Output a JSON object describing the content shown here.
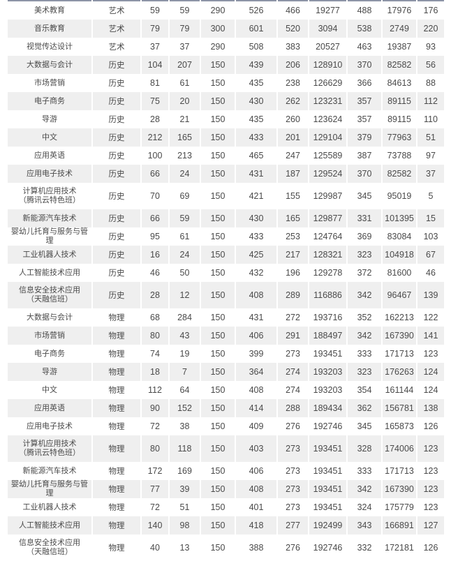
{
  "page": {
    "background": "#ffffff",
    "colors": {
      "row_alt_bg": "#efefef",
      "top_border": "#8d94a6",
      "text": "#4a4a4a",
      "cell_gap": "#ffffff"
    }
  },
  "table": {
    "rows": [
      {
        "major": "美术教育",
        "major2": "",
        "category": "艺术",
        "values": [
          59,
          59,
          290,
          526,
          466,
          19277,
          488,
          17976,
          176
        ]
      },
      {
        "major": "音乐教育",
        "major2": "",
        "category": "艺术",
        "values": [
          79,
          79,
          300,
          601,
          520,
          3094,
          538,
          2749,
          220
        ]
      },
      {
        "major": "视觉传达设计",
        "major2": "",
        "category": "艺术",
        "values": [
          37,
          37,
          290,
          508,
          383,
          20527,
          463,
          19387,
          93
        ]
      },
      {
        "major": "大数据与会计",
        "major2": "",
        "category": "历史",
        "values": [
          104,
          207,
          150,
          439,
          206,
          128910,
          370,
          82582,
          56
        ]
      },
      {
        "major": "市场营销",
        "major2": "",
        "category": "历史",
        "values": [
          81,
          61,
          150,
          435,
          238,
          126629,
          366,
          84613,
          88
        ]
      },
      {
        "major": "电子商务",
        "major2": "",
        "category": "历史",
        "values": [
          75,
          20,
          150,
          430,
          262,
          123231,
          357,
          89115,
          112
        ]
      },
      {
        "major": "导游",
        "major2": "",
        "category": "历史",
        "values": [
          28,
          21,
          150,
          435,
          260,
          123624,
          357,
          89115,
          110
        ]
      },
      {
        "major": "中文",
        "major2": "",
        "category": "历史",
        "values": [
          212,
          165,
          150,
          433,
          201,
          129104,
          379,
          77963,
          51
        ]
      },
      {
        "major": "应用英语",
        "major2": "",
        "category": "历史",
        "values": [
          100,
          213,
          150,
          465,
          247,
          125589,
          387,
          73788,
          97
        ]
      },
      {
        "major": "应用电子技术",
        "major2": "",
        "category": "历史",
        "values": [
          66,
          24,
          150,
          431,
          187,
          129524,
          370,
          82582,
          37
        ]
      },
      {
        "major": "计算机应用技术",
        "major2": "（腾讯云特色班）",
        "category": "历史",
        "values": [
          70,
          69,
          150,
          421,
          155,
          129987,
          345,
          95019,
          5
        ]
      },
      {
        "major": "新能源汽车技术",
        "major2": "",
        "category": "历史",
        "values": [
          66,
          59,
          150,
          430,
          165,
          129877,
          331,
          101395,
          15
        ]
      },
      {
        "major": "婴幼儿托育与服务与管理",
        "major2": "",
        "category": "历史",
        "values": [
          95,
          61,
          150,
          433,
          253,
          124764,
          369,
          83084,
          103
        ]
      },
      {
        "major": "工业机器人技术",
        "major2": "",
        "category": "历史",
        "values": [
          16,
          24,
          150,
          425,
          217,
          128321,
          323,
          104918,
          67
        ]
      },
      {
        "major": "人工智能技术应用",
        "major2": "",
        "category": "历史",
        "values": [
          46,
          50,
          150,
          432,
          196,
          129278,
          372,
          81600,
          46
        ]
      },
      {
        "major": "信息安全技术应用",
        "major2": "（天融信班）",
        "category": "历史",
        "values": [
          28,
          12,
          150,
          408,
          289,
          116886,
          342,
          96467,
          139
        ]
      },
      {
        "major": "大数据与会计",
        "major2": "",
        "category": "物理",
        "values": [
          68,
          284,
          150,
          431,
          272,
          193716,
          352,
          162213,
          122
        ]
      },
      {
        "major": "市场营销",
        "major2": "",
        "category": "物理",
        "values": [
          80,
          43,
          150,
          406,
          291,
          188497,
          342,
          167390,
          141
        ]
      },
      {
        "major": "电子商务",
        "major2": "",
        "category": "物理",
        "values": [
          74,
          19,
          150,
          399,
          273,
          193451,
          333,
          171713,
          123
        ]
      },
      {
        "major": "导游",
        "major2": "",
        "category": "物理",
        "values": [
          18,
          7,
          150,
          364,
          274,
          193203,
          323,
          176263,
          124
        ]
      },
      {
        "major": "中文",
        "major2": "",
        "category": "物理",
        "values": [
          112,
          64,
          150,
          408,
          274,
          193203,
          354,
          161144,
          124
        ]
      },
      {
        "major": "应用英语",
        "major2": "",
        "category": "物理",
        "values": [
          90,
          152,
          150,
          414,
          288,
          189434,
          362,
          156781,
          138
        ]
      },
      {
        "major": "应用电子技术",
        "major2": "",
        "category": "物理",
        "values": [
          72,
          38,
          150,
          409,
          276,
          192746,
          345,
          165873,
          126
        ]
      },
      {
        "major": "计算机应用技术",
        "major2": "（腾讯云特色班）",
        "category": "物理",
        "values": [
          80,
          118,
          150,
          403,
          273,
          193451,
          328,
          174006,
          123
        ]
      },
      {
        "major": "新能源汽车技术",
        "major2": "",
        "category": "物理",
        "values": [
          172,
          169,
          150,
          406,
          273,
          193451,
          333,
          171713,
          123
        ]
      },
      {
        "major": "婴幼儿托育与服务与管理",
        "major2": "",
        "category": "物理",
        "values": [
          77,
          39,
          150,
          408,
          273,
          193451,
          342,
          167390,
          123
        ]
      },
      {
        "major": "工业机器人技术",
        "major2": "",
        "category": "物理",
        "values": [
          72,
          51,
          150,
          401,
          273,
          193451,
          324,
          175779,
          123
        ]
      },
      {
        "major": "人工智能技术应用",
        "major2": "",
        "category": "物理",
        "values": [
          140,
          98,
          150,
          418,
          277,
          192499,
          343,
          166891,
          127
        ]
      },
      {
        "major": "信息安全技术应用",
        "major2": "（天融信班）",
        "category": "物理",
        "values": [
          40,
          13,
          150,
          388,
          276,
          192746,
          332,
          172181,
          126
        ]
      }
    ]
  }
}
